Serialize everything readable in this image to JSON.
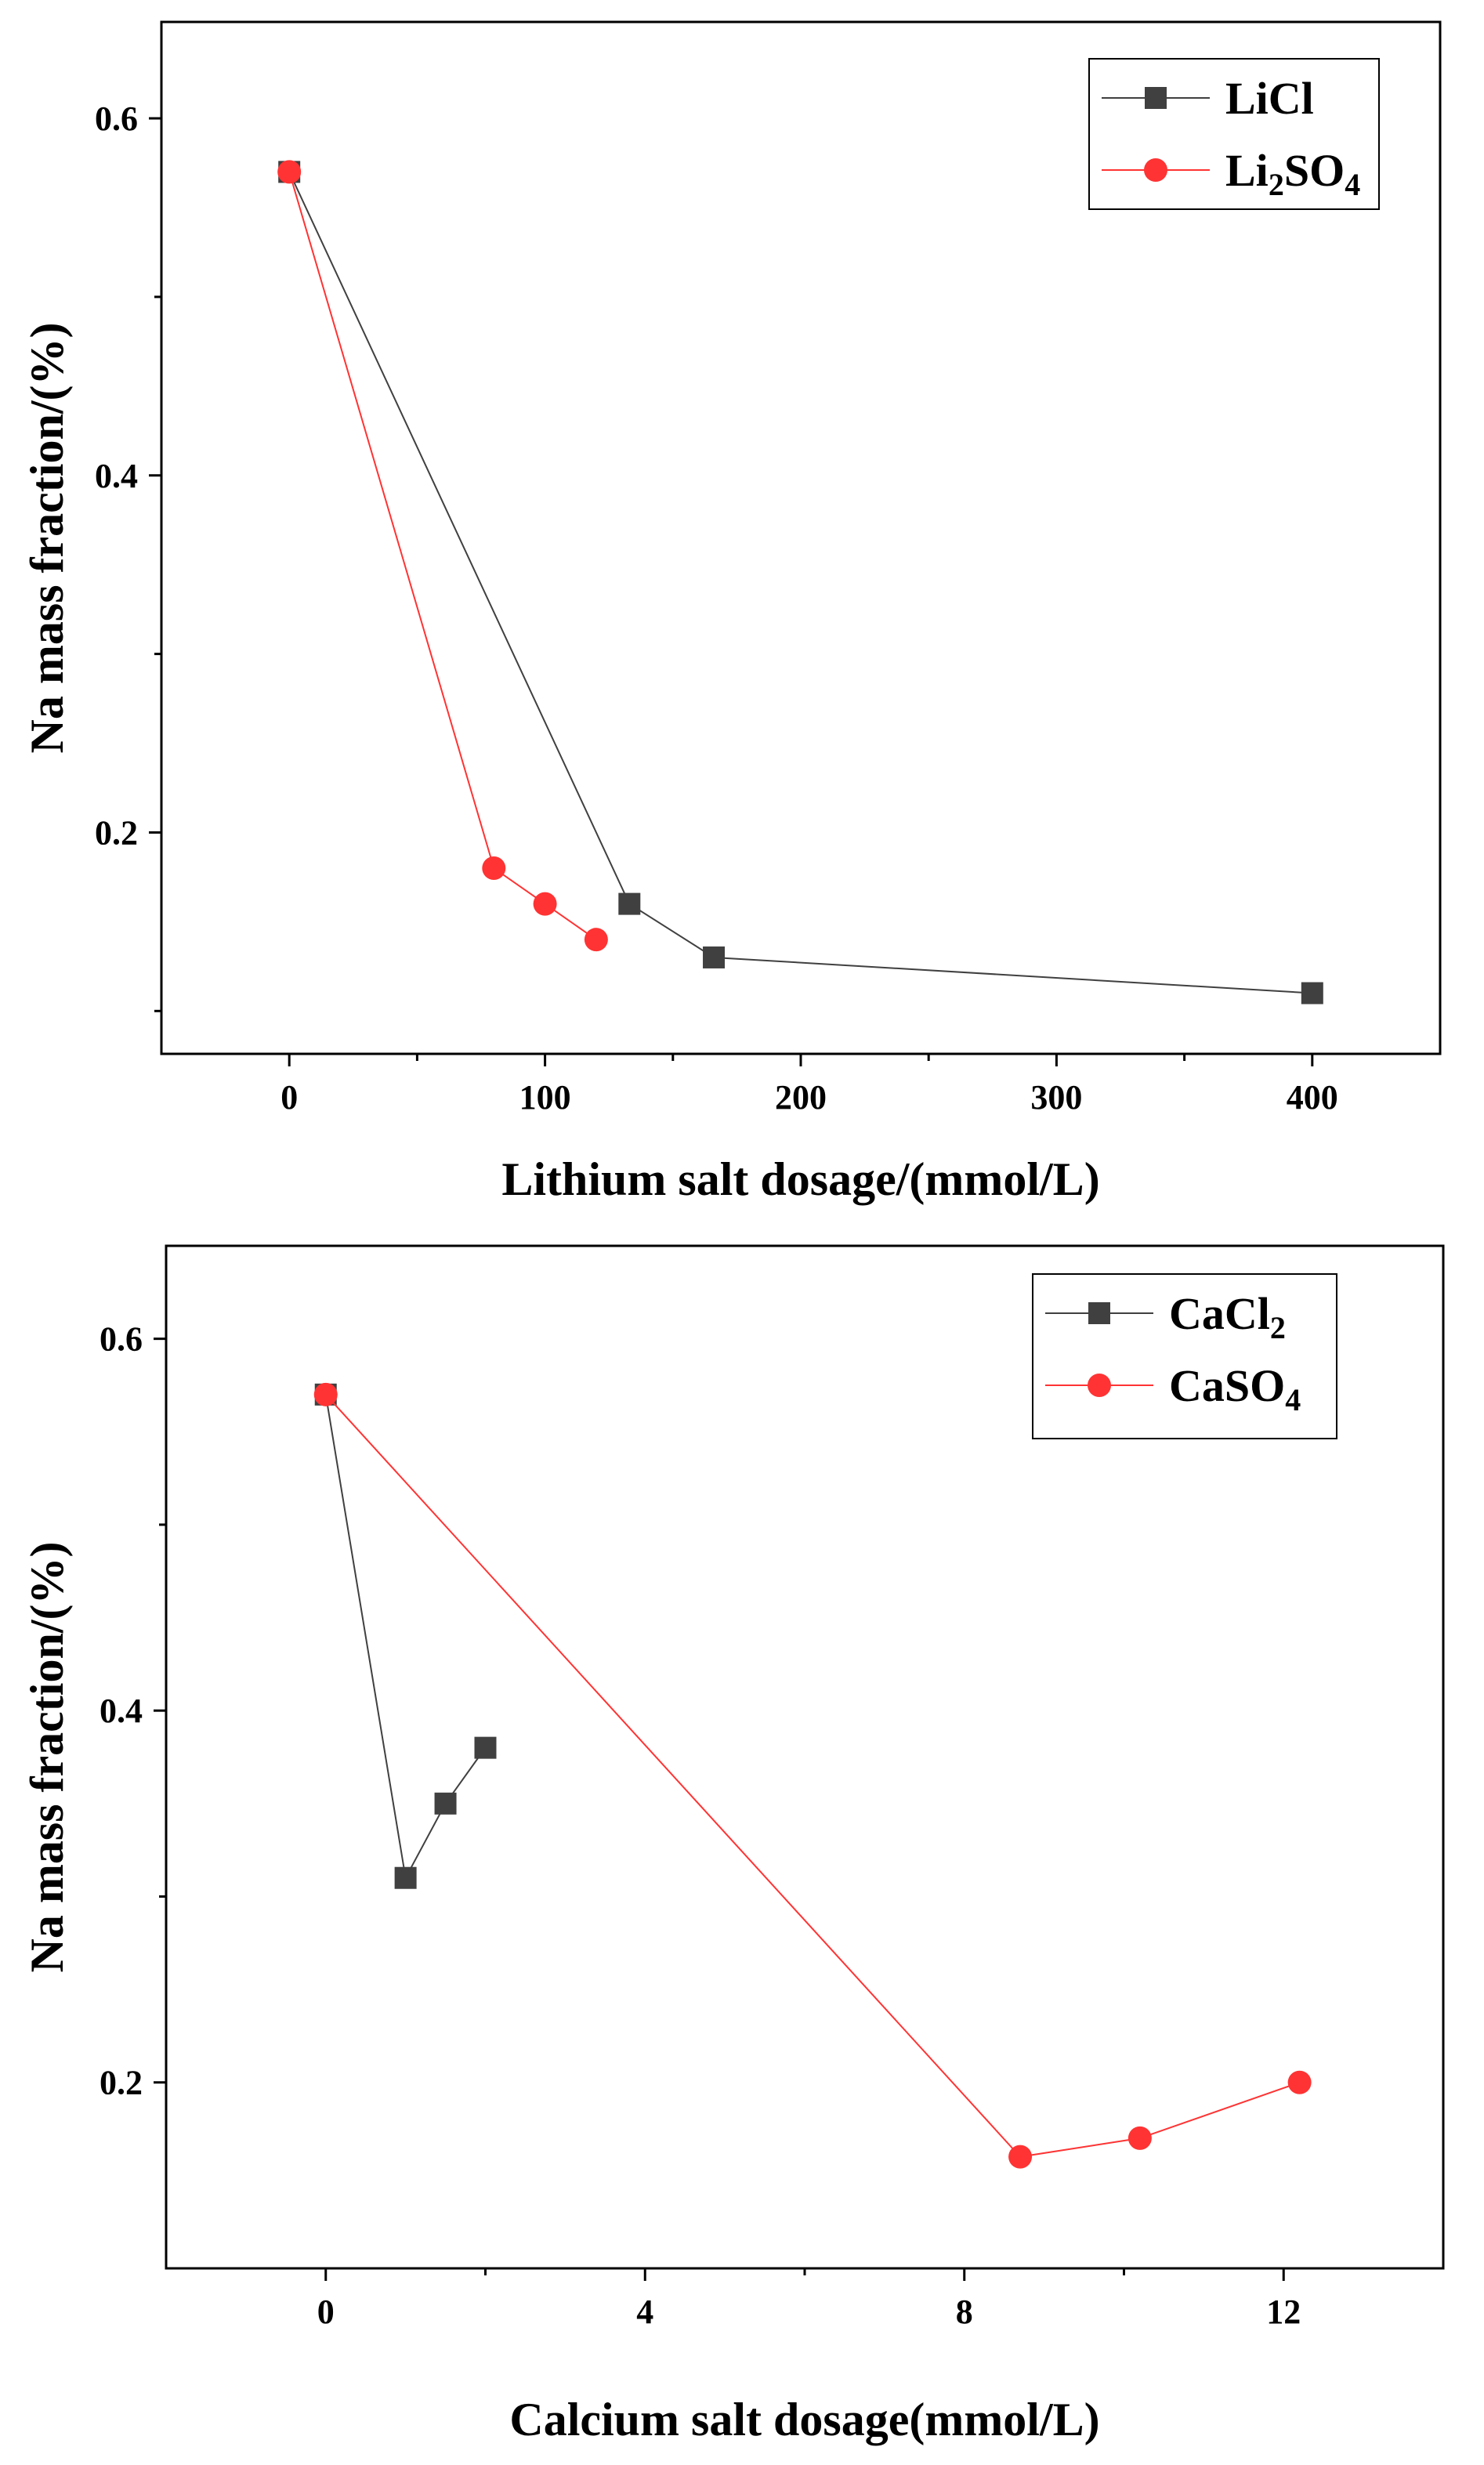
{
  "colors": {
    "black_series": "#404040",
    "red_series": "#ff3333",
    "axis": "#000000"
  },
  "chart_data": [
    {
      "type": "line",
      "xlabel": "Lithium salt dosage/(mmol/L)",
      "ylabel": "Na mass fraction/(%)",
      "xlim": [
        -50,
        450
      ],
      "ylim": [
        0.076,
        0.654
      ],
      "xticks": [
        0,
        100,
        200,
        300,
        400
      ],
      "xtick_labels": [
        "0",
        "100",
        "200",
        "300",
        "400"
      ],
      "xminor": [
        50,
        150,
        250,
        350
      ],
      "yticks": [
        0.2,
        0.4,
        0.6
      ],
      "ytick_labels": [
        "0.2",
        "0.4",
        "0.6"
      ],
      "yminor": [
        0.1,
        0.3,
        0.5
      ],
      "legend_position": "top-right",
      "series": [
        {
          "name": "LiCl",
          "label_main": "LiCl",
          "label_sub": "",
          "label_tail": "",
          "marker": "square",
          "color": "#404040",
          "x": [
            0,
            133,
            166,
            400
          ],
          "y": [
            0.57,
            0.16,
            0.13,
            0.11
          ]
        },
        {
          "name": "Li2SO4",
          "label_main": "Li",
          "label_sub": "2",
          "label_tail": "SO",
          "label_sub2": "4",
          "marker": "circle",
          "color": "#ff3333",
          "x": [
            0,
            80,
            100,
            120
          ],
          "y": [
            0.57,
            0.18,
            0.16,
            0.14
          ]
        }
      ]
    },
    {
      "type": "line",
      "xlabel": "Calcium salt dosage(mmol/L)",
      "ylabel": "Na mass fraction/(%)",
      "xlim": [
        -2,
        14
      ],
      "ylim": [
        0.1,
        0.65
      ],
      "xticks": [
        0,
        4,
        8,
        12
      ],
      "xtick_labels": [
        "0",
        "4",
        "8",
        "12"
      ],
      "xminor": [
        2,
        6,
        10
      ],
      "yticks": [
        0.2,
        0.4,
        0.6
      ],
      "ytick_labels": [
        "0.2",
        "0.4",
        "0.6"
      ],
      "yminor": [
        0.3,
        0.5
      ],
      "legend_position": "top-right",
      "series": [
        {
          "name": "CaCl2",
          "label_main": "CaCl",
          "label_sub": "2",
          "label_tail": "",
          "marker": "square",
          "color": "#404040",
          "x": [
            0,
            1,
            1.5,
            2
          ],
          "y": [
            0.57,
            0.31,
            0.35,
            0.38
          ]
        },
        {
          "name": "CaSO4",
          "label_main": "CaSO",
          "label_sub": "4",
          "label_tail": "",
          "marker": "circle",
          "color": "#ff3333",
          "x": [
            0,
            8.7,
            10.2,
            12.2
          ],
          "y": [
            0.57,
            0.16,
            0.17,
            0.2
          ]
        }
      ]
    }
  ]
}
